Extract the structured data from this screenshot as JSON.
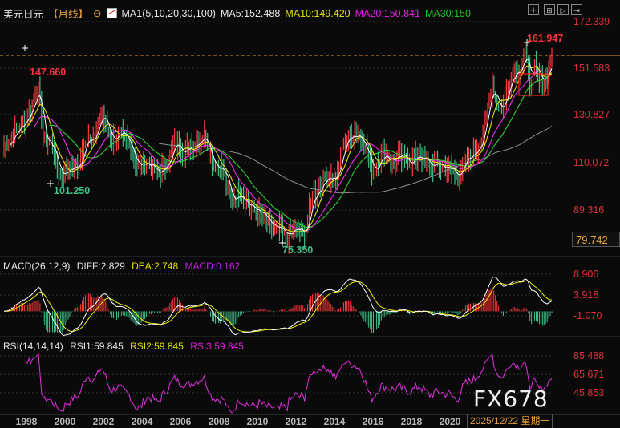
{
  "header": {
    "symbol": "美元日元",
    "period": "【月线】",
    "period_icon": "circle-minus",
    "indicator_icon": "ma-chart-icon",
    "ma_label": "MA1(5,10,20,30,100)",
    "ma5": "MA5:152.488",
    "ma10": "MA10:149.420",
    "ma20": "MA20:150.841",
    "ma30": "MA30:150",
    "toolbar": [
      "crosshair",
      "zoom-in",
      "play",
      "step"
    ]
  },
  "price_axis": [
    "172.339",
    "151.583",
    "130.827",
    "110.072",
    "89.316"
  ],
  "cursor_value": "79.742",
  "annotations": {
    "high": "161.947",
    "prior_high": "147.660",
    "low1": "101.250",
    "low2": "75.350"
  },
  "macd": {
    "label": "MACD(26,12,9)",
    "diff": "DIFF:2.829",
    "dea": "DEA:2.748",
    "macd": "MACD:0.162",
    "axis": [
      "8.906",
      "3.918",
      "-1.070"
    ]
  },
  "rsi": {
    "label": "RSI(14,14,14)",
    "rsi1": "RSI1:59.845",
    "rsi2": "RSI2:59.845",
    "rsi3": "RSI3:59.845",
    "axis": [
      "85.488",
      "65.671",
      "45.853"
    ]
  },
  "time_axis": [
    "1998",
    "2000",
    "2002",
    "2004",
    "2006",
    "2008",
    "2010",
    "2012",
    "2014",
    "2016",
    "2018",
    "2020"
  ],
  "current_date": "2025/12/22 星期一",
  "watermark": "FX678",
  "colors": {
    "up": "#ff3b3b",
    "down": "#3fc28a",
    "ma5": "#ffffff",
    "ma10": "#f0f000",
    "ma20": "#ff30ff",
    "ma30": "#30e030",
    "ma100": "#909090",
    "axis_text": "#e0303a",
    "rsi": "#e030e0"
  },
  "chart_data": {
    "type": "candlestick",
    "ylim": [
      70,
      175
    ],
    "ma_periods": [
      5,
      10,
      20,
      30,
      100
    ],
    "key_points": [
      [
        1996.8,
        116
      ],
      [
        1997.3,
        122
      ],
      [
        1997.9,
        128
      ],
      [
        1998.3,
        135
      ],
      [
        1998.6,
        144
      ],
      [
        1998.9,
        120
      ],
      [
        1999.3,
        118
      ],
      [
        1999.8,
        104
      ],
      [
        2000.2,
        107
      ],
      [
        2000.8,
        108
      ],
      [
        2001.2,
        122
      ],
      [
        2001.6,
        120
      ],
      [
        2002.0,
        132
      ],
      [
        2002.5,
        120
      ],
      [
        2002.9,
        122
      ],
      [
        2003.5,
        118
      ],
      [
        2003.9,
        108
      ],
      [
        2004.5,
        110
      ],
      [
        2005.0,
        104
      ],
      [
        2005.5,
        110
      ],
      [
        2005.9,
        118
      ],
      [
        2006.5,
        115
      ],
      [
        2006.9,
        118
      ],
      [
        2007.5,
        122
      ],
      [
        2007.9,
        110
      ],
      [
        2008.5,
        106
      ],
      [
        2008.9,
        92
      ],
      [
        2009.3,
        97
      ],
      [
        2009.9,
        90
      ],
      [
        2010.5,
        87
      ],
      [
        2010.9,
        82
      ],
      [
        2011.5,
        79
      ],
      [
        2011.9,
        77
      ],
      [
        2012.3,
        80
      ],
      [
        2012.8,
        78
      ],
      [
        2013.2,
        94
      ],
      [
        2013.6,
        99
      ],
      [
        2014.0,
        104
      ],
      [
        2014.5,
        102
      ],
      [
        2014.9,
        119
      ],
      [
        2015.5,
        123
      ],
      [
        2015.9,
        120
      ],
      [
        2016.4,
        106
      ],
      [
        2016.9,
        113
      ],
      [
        2017.5,
        111
      ],
      [
        2017.9,
        112
      ],
      [
        2018.5,
        110
      ],
      [
        2018.9,
        113
      ],
      [
        2019.5,
        108
      ],
      [
        2019.9,
        109
      ],
      [
        2020.5,
        107
      ],
      [
        2020.9,
        104
      ],
      [
        2021.4,
        110
      ],
      [
        2021.9,
        115
      ],
      [
        2022.3,
        122
      ],
      [
        2022.8,
        146
      ],
      [
        2022.95,
        138
      ],
      [
        2023.3,
        133
      ],
      [
        2023.8,
        149
      ],
      [
        2024.3,
        152
      ],
      [
        2024.5,
        160
      ],
      [
        2024.8,
        145
      ],
      [
        2025.0,
        152
      ],
      [
        2025.3,
        146
      ],
      [
        2025.6,
        147
      ],
      [
        2025.95,
        156
      ]
    ],
    "extremes": {
      "high": 161.947,
      "prior_high": 147.66,
      "low1": 101.25,
      "low2": 75.35
    }
  }
}
